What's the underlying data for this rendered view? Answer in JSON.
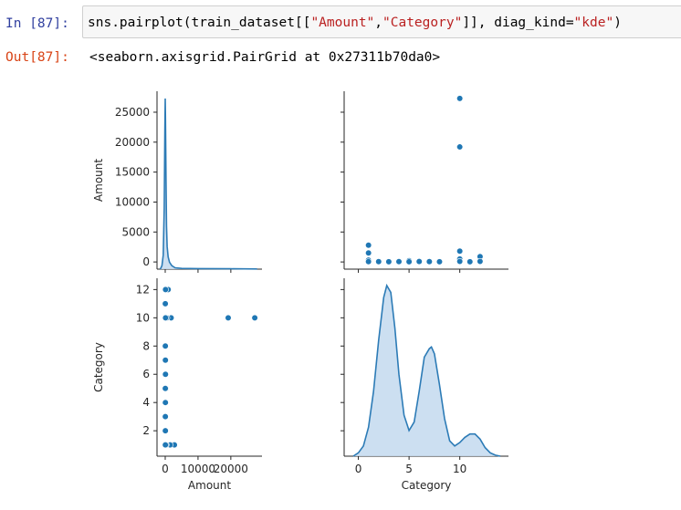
{
  "cell": {
    "in_prompt": "In [87]:",
    "out_prompt": "Out[87]:",
    "code_parts": {
      "p1": "sns.pairplot(train_dataset[[",
      "s1": "\"Amount\"",
      "p2": ",",
      "s2": "\"Category\"",
      "p3": "]], diag_kind=",
      "s3": "\"kde\"",
      "p4": ")"
    },
    "output_text": "<seaborn.axisgrid.PairGrid at 0x27311b70da0>"
  },
  "colors": {
    "point": "#1f77b4",
    "kde_fill": "#c6dbef",
    "kde_line": "#2c7bb6",
    "in_prompt": "#303f9f",
    "out_prompt": "#d84315",
    "string": "#ba2121"
  },
  "chart_data": {
    "type": "scatter",
    "kind": "pairplot",
    "variables": [
      "Amount",
      "Category"
    ],
    "diag_kind": "kde",
    "axes": {
      "Amount": {
        "range": [
          -2500,
          29500
        ],
        "ticks": [
          0,
          10000,
          20000
        ],
        "tick_labels": [
          "0",
          "10000",
          "20000"
        ],
        "y_ticks": [
          0,
          5000,
          10000,
          15000,
          20000,
          25000
        ],
        "y_tick_labels": [
          "0",
          "5000",
          "10000",
          "15000",
          "20000",
          "25000"
        ],
        "label": "Amount"
      },
      "Category": {
        "range": [
          -1.4,
          14.8
        ],
        "ticks": [
          0,
          5,
          10
        ],
        "tick_labels": [
          "0",
          "5",
          "10"
        ],
        "y_ticks": [
          2,
          4,
          6,
          8,
          10,
          12
        ],
        "y_tick_labels": [
          "2",
          "4",
          "6",
          "8",
          "10",
          "12"
        ],
        "y_range": [
          0.2,
          12.8
        ],
        "label": "Category"
      }
    },
    "points": [
      {
        "category": 1,
        "amount": 2800
      },
      {
        "category": 1,
        "amount": 1500
      },
      {
        "category": 1,
        "amount": 300
      },
      {
        "category": 1,
        "amount": 50
      },
      {
        "category": 2,
        "amount": 50
      },
      {
        "category": 3,
        "amount": 40
      },
      {
        "category": 4,
        "amount": 60
      },
      {
        "category": 5,
        "amount": 200
      },
      {
        "category": 5,
        "amount": 30
      },
      {
        "category": 6,
        "amount": 80
      },
      {
        "category": 7,
        "amount": 60
      },
      {
        "category": 8,
        "amount": 40
      },
      {
        "category": 10,
        "amount": 27300
      },
      {
        "category": 10,
        "amount": 19200
      },
      {
        "category": 10,
        "amount": 1800
      },
      {
        "category": 10,
        "amount": 500
      },
      {
        "category": 10,
        "amount": 100
      },
      {
        "category": 11,
        "amount": 30
      },
      {
        "category": 12,
        "amount": 900
      },
      {
        "category": 12,
        "amount": 100
      }
    ],
    "kde_amount": {
      "x": [
        -1500,
        -1000,
        -600,
        -300,
        -100,
        0,
        100,
        250,
        400,
        600,
        900,
        1300,
        2000,
        3000,
        5000,
        10000,
        20000,
        28000
      ],
      "y": [
        0,
        0.02,
        0.08,
        0.35,
        0.8,
        0.98,
        0.85,
        0.5,
        0.25,
        0.13,
        0.07,
        0.04,
        0.02,
        0.008,
        0.004,
        0.003,
        0.002,
        0.001
      ]
    },
    "kde_category": {
      "x": [
        -0.5,
        0,
        0.5,
        1,
        1.5,
        2,
        2.5,
        2.8,
        3.2,
        3.6,
        4,
        4.5,
        5,
        5.5,
        6,
        6.5,
        7,
        7.2,
        7.5,
        8,
        8.5,
        9,
        9.5,
        10,
        10.5,
        11,
        11.5,
        12,
        12.5,
        13,
        13.5,
        14
      ],
      "y": [
        0.0,
        0.02,
        0.06,
        0.17,
        0.38,
        0.68,
        0.93,
        1.0,
        0.96,
        0.75,
        0.48,
        0.24,
        0.15,
        0.2,
        0.38,
        0.58,
        0.63,
        0.64,
        0.6,
        0.42,
        0.22,
        0.09,
        0.06,
        0.08,
        0.11,
        0.13,
        0.13,
        0.1,
        0.05,
        0.02,
        0.006,
        0.0
      ]
    }
  }
}
